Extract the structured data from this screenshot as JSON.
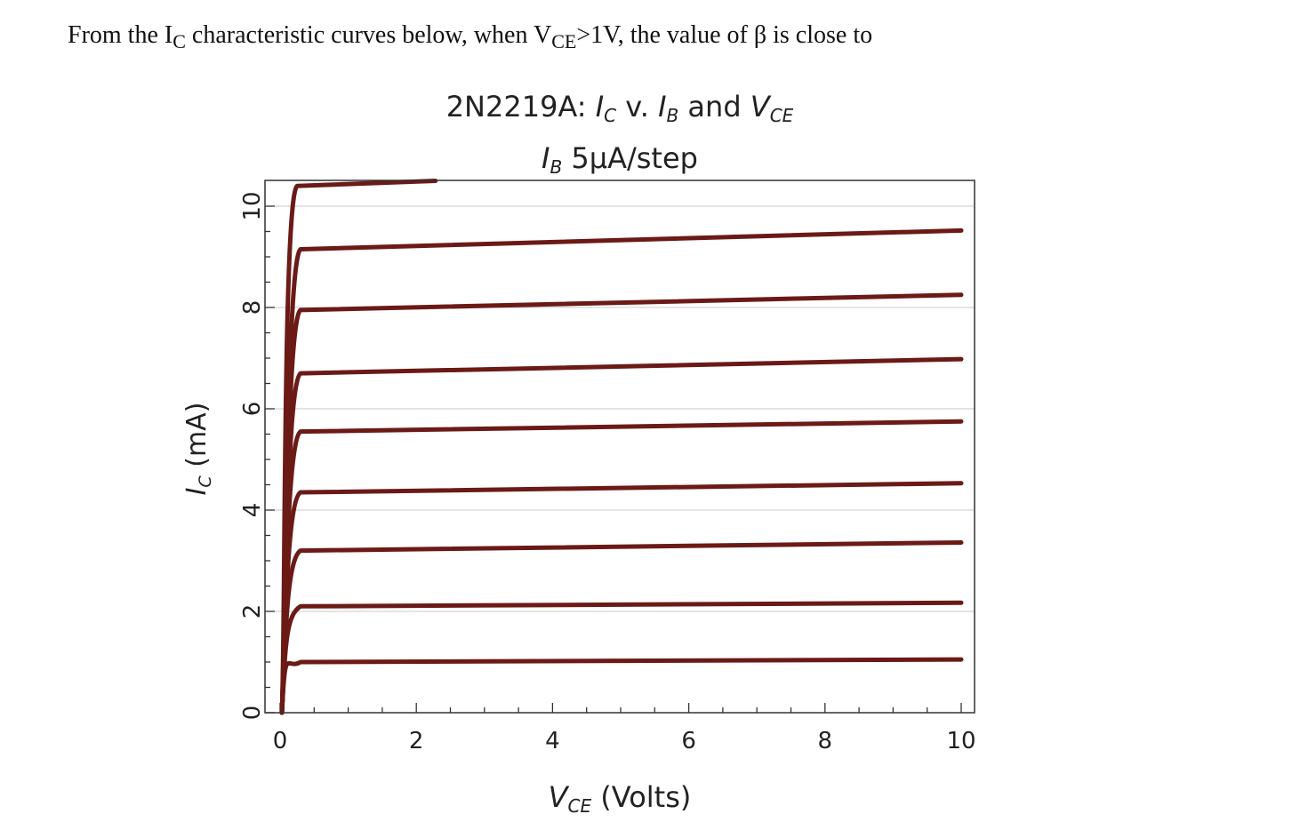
{
  "question": {
    "prefix": "From the I",
    "ic_sub": "C",
    "middle": " characteristic curves below, when V",
    "vce_sub": "CE",
    "suffix": ">1V, the value of β is close to"
  },
  "chart_data": {
    "type": "line",
    "title": {
      "part_device": "2N2219A: ",
      "ic_main": "I",
      "ic_sub": "C",
      "part_mid": " v. ",
      "ib_main": "I",
      "ib_sub": "B",
      "part_and": " and ",
      "vce_main": "V",
      "vce_sub": "CE"
    },
    "subtitle": {
      "ib_main": "I",
      "ib_sub": "B",
      "text": " 5μA/step"
    },
    "xlabel": {
      "main": "V",
      "sub": "CE",
      "rest": " (Volts)"
    },
    "ylabel": {
      "main": "I",
      "sub": "C",
      "rest": " (mA)"
    },
    "xlim": [
      0,
      10
    ],
    "ylim": [
      0,
      10.5
    ],
    "xticks": [
      0,
      2,
      4,
      6,
      8,
      10
    ],
    "yticks": [
      0,
      2,
      4,
      6,
      8,
      10
    ],
    "x_tick_labels": [
      "0",
      "2",
      "4",
      "6",
      "8",
      "10"
    ],
    "y_tick_labels": [
      "0",
      "2",
      "4",
      "6",
      "8",
      "10"
    ],
    "grid": "horizontal",
    "line_color": "#6b1a16",
    "step_ua": 5,
    "series": [
      {
        "values": [
          {
            "x": 0.3,
            "y": 1.0
          },
          {
            "x": 10,
            "y": 1.05
          }
        ]
      },
      {
        "values": [
          {
            "x": 0.3,
            "y": 2.1
          },
          {
            "x": 10,
            "y": 2.17
          }
        ]
      },
      {
        "values": [
          {
            "x": 0.3,
            "y": 3.2
          },
          {
            "x": 10,
            "y": 3.36
          }
        ]
      },
      {
        "values": [
          {
            "x": 0.3,
            "y": 4.35
          },
          {
            "x": 10,
            "y": 4.53
          }
        ]
      },
      {
        "values": [
          {
            "x": 0.3,
            "y": 5.55
          },
          {
            "x": 10,
            "y": 5.75
          }
        ]
      },
      {
        "values": [
          {
            "x": 0.3,
            "y": 6.7
          },
          {
            "x": 10,
            "y": 6.98
          }
        ]
      },
      {
        "values": [
          {
            "x": 0.3,
            "y": 7.95
          },
          {
            "x": 10,
            "y": 8.25
          }
        ]
      },
      {
        "values": [
          {
            "x": 0.3,
            "y": 9.15
          },
          {
            "x": 10,
            "y": 9.52
          }
        ]
      },
      {
        "values": [
          {
            "x": 0.25,
            "y": 10.4
          },
          {
            "x": 2.28,
            "y": 10.5
          }
        ]
      }
    ]
  }
}
